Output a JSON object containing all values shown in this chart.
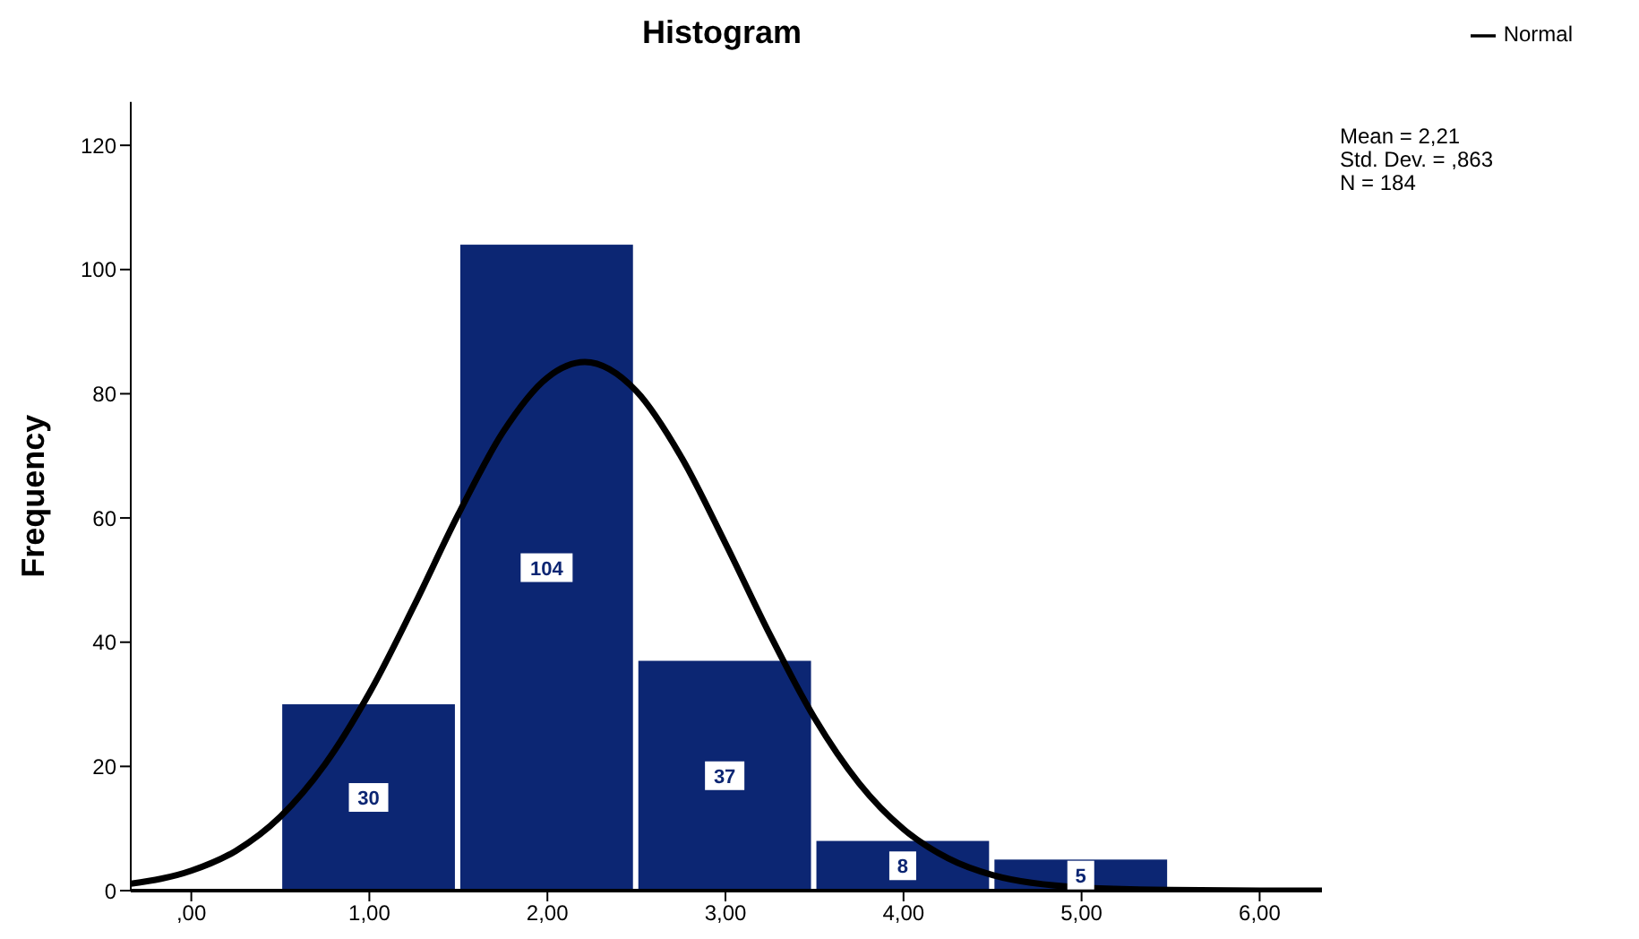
{
  "chart_data": {
    "type": "histogram",
    "title": "Histogram",
    "ylabel": "Frequency",
    "bins": [
      0.5,
      1.5,
      2.5,
      3.5,
      4.5,
      5.5
    ],
    "values": [
      30,
      104,
      37,
      8,
      5
    ],
    "color": "#0c2673",
    "value_labels": [
      "30",
      "104",
      "37",
      "8",
      "5"
    ],
    "series": [
      {
        "type": "line",
        "name": "Normal",
        "color": "#000000",
        "x": [
          -0.34,
          0,
          0.25,
          0.5,
          0.75,
          1,
          1.25,
          1.5,
          1.75,
          2,
          2.21,
          2.5,
          2.75,
          3,
          3.25,
          3.5,
          3.75,
          4,
          4.25,
          4.5,
          5,
          5.5,
          6,
          6.35
        ],
        "values": [
          1.1,
          3.2,
          6.4,
          11.9,
          20.3,
          31.8,
          45.8,
          60.6,
          73.8,
          82.6,
          85.1,
          80.4,
          69.9,
          55.9,
          41.2,
          27.8,
          17.3,
          9.9,
          5.2,
          2.5,
          0.5,
          0.1,
          0,
          0
        ]
      }
    ],
    "xlim": [
      -0.34,
      6.35
    ],
    "ylim": [
      0,
      127
    ],
    "xticks": [
      {
        "value": 0,
        "label": ",00"
      },
      {
        "value": 1,
        "label": "1,00"
      },
      {
        "value": 2,
        "label": "2,00"
      },
      {
        "value": 3,
        "label": "3,00"
      },
      {
        "value": 4,
        "label": "4,00"
      },
      {
        "value": 5,
        "label": "5,00"
      },
      {
        "value": 6,
        "label": "6,00"
      }
    ],
    "yticks": [
      0,
      20,
      40,
      60,
      80,
      100,
      120
    ],
    "grid": false,
    "legend": "top right",
    "marker": "none",
    "line_style": "solid",
    "annotations": [
      "Mean = 2,21",
      "Std. Dev. = ,863",
      "N = 184"
    ]
  }
}
